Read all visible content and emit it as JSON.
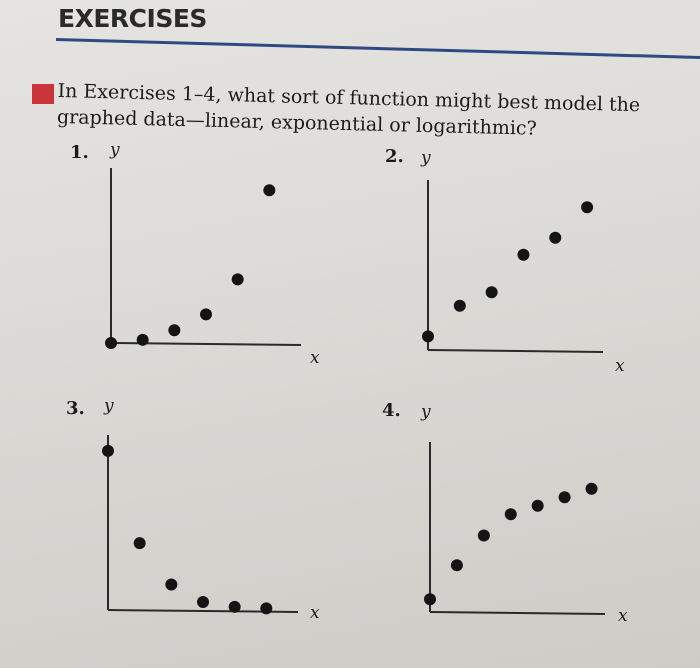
{
  "heading": "EXERCISES",
  "question": {
    "prefix": "In Exercises ",
    "range": "1–4",
    "rest": ", what sort of function might best model the graphed data—linear, exponential or logarithmic?"
  },
  "accent_colors": {
    "heading_rule": "#2f4a82",
    "marker": "#c9353a"
  },
  "chart_data": [
    {
      "type": "scatter",
      "label": "1.",
      "xlabel": "x",
      "ylabel": "y",
      "x": [
        0,
        1,
        2,
        3,
        4,
        5
      ],
      "y": [
        0,
        0.1,
        0.4,
        0.9,
        2.0,
        4.8
      ],
      "xlim": [
        0,
        6
      ],
      "ylim": [
        0,
        5.5
      ],
      "grid": false
    },
    {
      "type": "scatter",
      "label": "2.",
      "xlabel": "x",
      "ylabel": "y",
      "x": [
        0,
        1,
        2,
        3,
        4,
        5
      ],
      "y": [
        0.4,
        1.3,
        1.7,
        2.8,
        3.3,
        4.2
      ],
      "xlim": [
        0,
        5.5
      ],
      "ylim": [
        0,
        5
      ],
      "grid": false
    },
    {
      "type": "scatter",
      "label": "3.",
      "xlabel": "x",
      "ylabel": "y",
      "x": [
        0,
        1,
        2,
        3,
        4,
        5
      ],
      "y": [
        5.0,
        2.1,
        0.8,
        0.25,
        0.1,
        0.05
      ],
      "xlim": [
        0,
        6
      ],
      "ylim": [
        0,
        5.5
      ],
      "grid": false
    },
    {
      "type": "scatter",
      "label": "4.",
      "xlabel": "x",
      "ylabel": "y",
      "x": [
        0,
        1,
        2,
        3,
        4,
        5,
        6
      ],
      "y": [
        0.3,
        1.1,
        1.8,
        2.3,
        2.5,
        2.7,
        2.9
      ],
      "xlim": [
        0,
        6.5
      ],
      "ylim": [
        0,
        4
      ],
      "grid": false
    }
  ]
}
